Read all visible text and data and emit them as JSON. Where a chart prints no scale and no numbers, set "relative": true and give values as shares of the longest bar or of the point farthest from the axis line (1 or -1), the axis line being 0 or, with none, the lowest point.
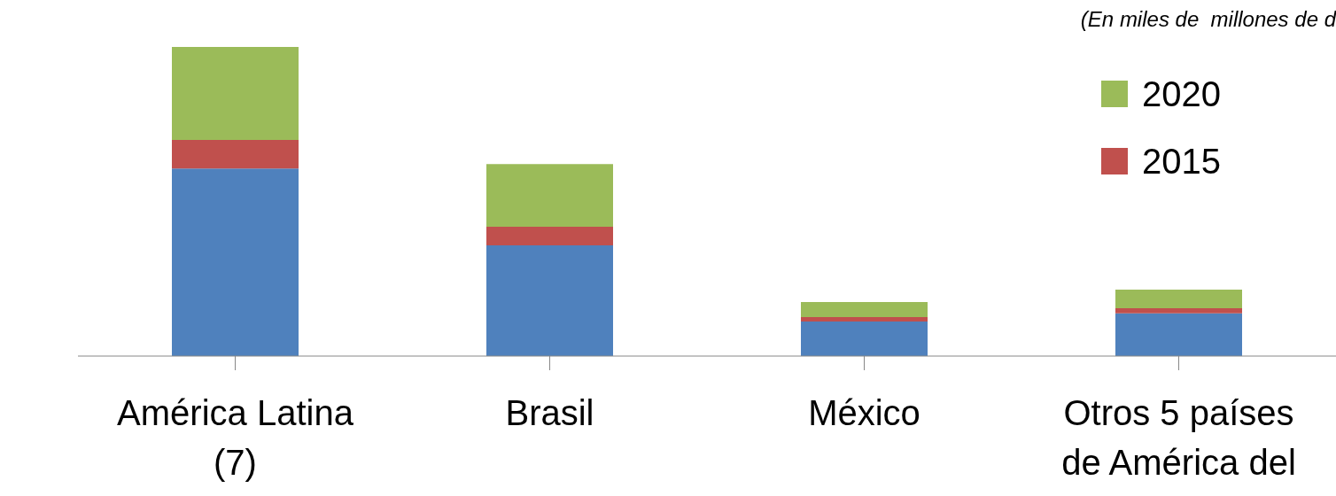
{
  "chart_data": {
    "type": "bar",
    "stacked": true,
    "relative": true,
    "legend": "top right",
    "annotations": [
      "(En miles de  millones de d"
    ],
    "categories": [
      "América Latina (7)",
      "Brasil",
      "México",
      "Otros 5 países de América del"
    ],
    "series": [
      {
        "color": "#4f81bd",
        "values": [
          0.607,
          0.358,
          0.112,
          0.138
        ]
      },
      {
        "name": "2015",
        "color": "#c0504d",
        "values": [
          0.092,
          0.06,
          0.014,
          0.017
        ]
      },
      {
        "name": "2020",
        "color": "#9bbb59",
        "values": [
          0.301,
          0.203,
          0.049,
          0.06
        ]
      }
    ]
  }
}
